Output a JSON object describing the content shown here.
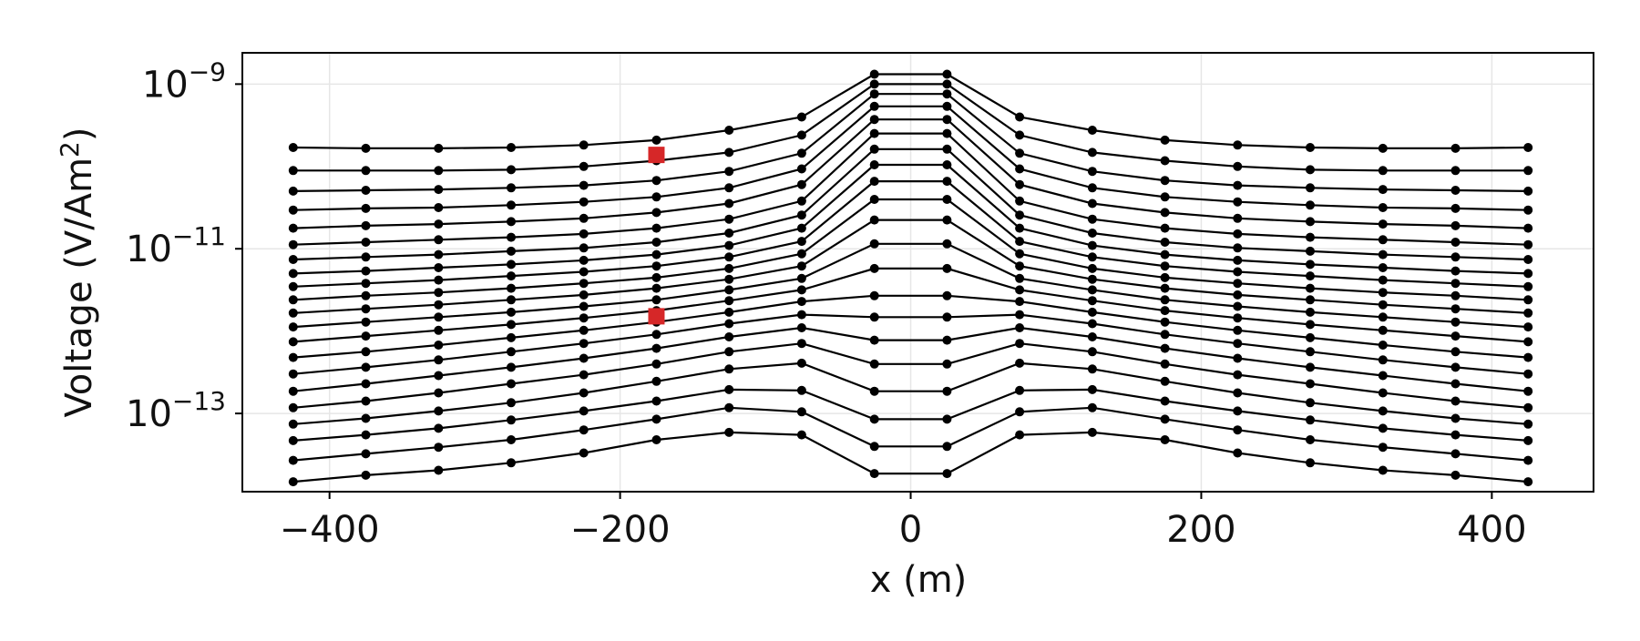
{
  "chart_data": {
    "type": "line",
    "xlabel": "x (m)",
    "ylabel": "Voltage (V/Am²)",
    "ylabel_base": "Voltage (V/Am",
    "ylabel_sup": "2",
    "ylabel_close": ")",
    "y_scale": "log",
    "xlim": [
      -460,
      470
    ],
    "ylim_log10": [
      -13.95,
      -8.62
    ],
    "grid": true,
    "x_ticks": [
      {
        "value": -400,
        "label": "−400"
      },
      {
        "value": -200,
        "label": "−200"
      },
      {
        "value": 0,
        "label": "0"
      },
      {
        "value": 200,
        "label": "200"
      },
      {
        "value": 400,
        "label": "400"
      }
    ],
    "y_ticks": [
      {
        "log10": -9,
        "base": "10",
        "exp": "−9"
      },
      {
        "log10": -11,
        "base": "10",
        "exp": "−11"
      },
      {
        "log10": -13,
        "base": "10",
        "exp": "−13"
      }
    ],
    "x": [
      -425,
      -375,
      -325,
      -275,
      -225,
      -175,
      -125,
      -75,
      -25,
      25,
      75,
      125,
      175,
      225,
      275,
      325,
      375,
      425
    ],
    "series_log10": [
      [
        -9.77,
        -9.78,
        -9.78,
        -9.77,
        -9.74,
        -9.68,
        -9.56,
        -9.4,
        -8.88,
        -8.88,
        -9.4,
        -9.56,
        -9.68,
        -9.74,
        -9.77,
        -9.78,
        -9.78,
        -9.77
      ],
      [
        -10.05,
        -10.05,
        -10.05,
        -10.04,
        -10.0,
        -9.93,
        -9.83,
        -9.62,
        -9.0,
        -9.0,
        -9.62,
        -9.83,
        -9.93,
        -10.0,
        -10.04,
        -10.05,
        -10.05,
        -10.05
      ],
      [
        -10.3,
        -10.29,
        -10.28,
        -10.26,
        -10.23,
        -10.17,
        -10.06,
        -9.84,
        -9.12,
        -9.12,
        -9.84,
        -10.06,
        -10.17,
        -10.23,
        -10.26,
        -10.28,
        -10.29,
        -10.3
      ],
      [
        -10.53,
        -10.51,
        -10.5,
        -10.47,
        -10.43,
        -10.37,
        -10.26,
        -10.03,
        -9.27,
        -9.27,
        -10.03,
        -10.26,
        -10.37,
        -10.43,
        -10.47,
        -10.5,
        -10.51,
        -10.53
      ],
      [
        -10.75,
        -10.72,
        -10.7,
        -10.67,
        -10.63,
        -10.56,
        -10.45,
        -10.22,
        -9.43,
        -9.43,
        -10.22,
        -10.45,
        -10.56,
        -10.63,
        -10.67,
        -10.7,
        -10.72,
        -10.75
      ],
      [
        -10.95,
        -10.92,
        -10.89,
        -10.86,
        -10.82,
        -10.75,
        -10.64,
        -10.42,
        -9.6,
        -9.6,
        -10.42,
        -10.64,
        -10.75,
        -10.82,
        -10.86,
        -10.89,
        -10.92,
        -10.95
      ],
      [
        -11.13,
        -11.1,
        -11.07,
        -11.03,
        -10.99,
        -10.92,
        -10.81,
        -10.59,
        -9.79,
        -9.79,
        -10.59,
        -10.81,
        -10.92,
        -10.99,
        -11.03,
        -11.07,
        -11.1,
        -11.13
      ],
      [
        -11.3,
        -11.27,
        -11.23,
        -11.19,
        -11.14,
        -11.07,
        -10.96,
        -10.75,
        -9.98,
        -9.98,
        -10.75,
        -10.96,
        -11.07,
        -11.14,
        -11.19,
        -11.23,
        -11.27,
        -11.3
      ],
      [
        -11.46,
        -11.42,
        -11.38,
        -11.33,
        -11.28,
        -11.21,
        -11.1,
        -10.91,
        -10.18,
        -10.18,
        -10.91,
        -11.1,
        -11.21,
        -11.28,
        -11.33,
        -11.38,
        -11.42,
        -11.46
      ],
      [
        -11.62,
        -11.57,
        -11.53,
        -11.48,
        -11.42,
        -11.35,
        -11.24,
        -11.06,
        -10.4,
        -10.4,
        -11.06,
        -11.24,
        -11.35,
        -11.42,
        -11.48,
        -11.53,
        -11.57,
        -11.62
      ],
      [
        -11.78,
        -11.73,
        -11.68,
        -11.62,
        -11.56,
        -11.48,
        -11.37,
        -11.21,
        -10.65,
        -10.65,
        -11.21,
        -11.37,
        -11.48,
        -11.56,
        -11.62,
        -11.68,
        -11.73,
        -11.78
      ],
      [
        -11.95,
        -11.89,
        -11.83,
        -11.77,
        -11.7,
        -11.62,
        -11.5,
        -11.36,
        -10.94,
        -10.94,
        -11.36,
        -11.5,
        -11.62,
        -11.7,
        -11.77,
        -11.83,
        -11.89,
        -11.95
      ],
      [
        -12.13,
        -12.06,
        -11.99,
        -11.92,
        -11.84,
        -11.75,
        -11.63,
        -11.5,
        -11.24,
        -11.24,
        -11.5,
        -11.63,
        -11.75,
        -11.84,
        -11.92,
        -11.99,
        -12.06,
        -12.13
      ],
      [
        -12.32,
        -12.25,
        -12.17,
        -12.08,
        -11.99,
        -11.89,
        -11.77,
        -11.64,
        -11.57,
        -11.57,
        -11.64,
        -11.77,
        -11.89,
        -11.99,
        -12.08,
        -12.17,
        -12.25,
        -12.32
      ],
      [
        -12.52,
        -12.44,
        -12.35,
        -12.25,
        -12.15,
        -12.04,
        -11.91,
        -11.8,
        -11.83,
        -11.83,
        -11.8,
        -11.91,
        -12.04,
        -12.15,
        -12.25,
        -12.35,
        -12.44,
        -12.52
      ],
      [
        -12.73,
        -12.64,
        -12.54,
        -12.44,
        -12.33,
        -12.21,
        -12.07,
        -11.96,
        -12.11,
        -12.11,
        -11.96,
        -12.07,
        -12.21,
        -12.33,
        -12.44,
        -12.54,
        -12.64,
        -12.73
      ],
      [
        -12.93,
        -12.85,
        -12.75,
        -12.64,
        -12.53,
        -12.4,
        -12.25,
        -12.15,
        -12.4,
        -12.4,
        -12.15,
        -12.25,
        -12.4,
        -12.53,
        -12.64,
        -12.75,
        -12.85,
        -12.93
      ],
      [
        -13.13,
        -13.06,
        -12.97,
        -12.87,
        -12.75,
        -12.61,
        -12.46,
        -12.39,
        -12.73,
        -12.73,
        -12.39,
        -12.46,
        -12.61,
        -12.75,
        -12.87,
        -12.97,
        -13.06,
        -13.13
      ],
      [
        -13.33,
        -13.26,
        -13.18,
        -13.08,
        -12.97,
        -12.85,
        -12.71,
        -12.72,
        -13.07,
        -13.07,
        -12.72,
        -12.71,
        -12.85,
        -12.97,
        -13.08,
        -13.18,
        -13.26,
        -13.33
      ],
      [
        -13.57,
        -13.49,
        -13.41,
        -13.32,
        -13.2,
        -13.07,
        -12.93,
        -12.98,
        -13.4,
        -13.4,
        -12.98,
        -12.93,
        -13.07,
        -13.2,
        -13.32,
        -13.41,
        -13.49,
        -13.57
      ],
      [
        -13.83,
        -13.75,
        -13.69,
        -13.6,
        -13.48,
        -13.32,
        -13.23,
        -13.26,
        -13.73,
        -13.73,
        -13.26,
        -13.23,
        -13.32,
        -13.48,
        -13.6,
        -13.69,
        -13.75,
        -13.83
      ]
    ],
    "highlight_points": [
      {
        "x": -175,
        "log10": -9.86,
        "color": "#d62728",
        "marker": "square"
      },
      {
        "x": -175,
        "log10": -11.82,
        "color": "#d62728",
        "marker": "square"
      }
    ],
    "line_color": "#000000",
    "marker": "circle"
  }
}
